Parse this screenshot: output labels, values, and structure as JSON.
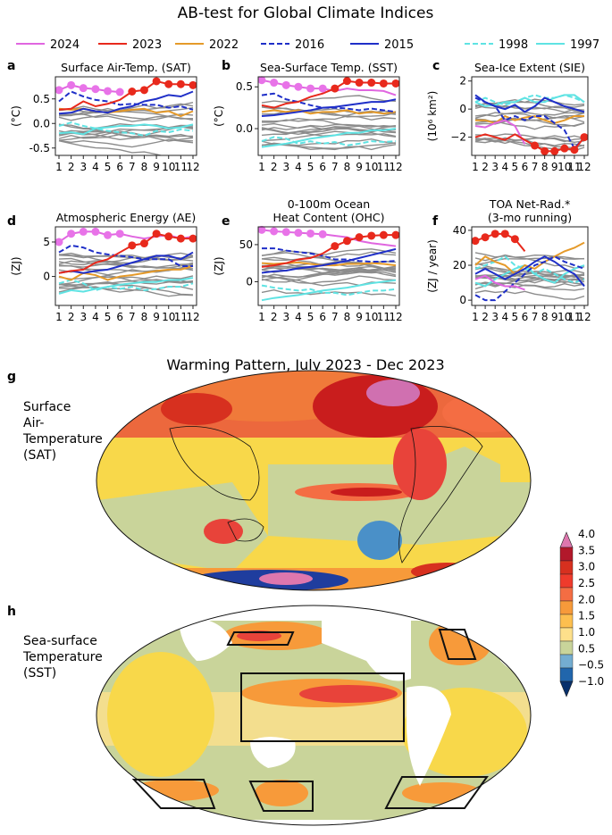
{
  "figure": {
    "title": "AB-test for Global Climate Indices",
    "map_title": "Warming Pattern, July 2023 - Dec 2023",
    "map_panels": [
      {
        "label": "g",
        "name": "Surface Air-Temperature (SAT)",
        "name_lines": [
          "Surface",
          "Air-",
          "Temperature",
          "(SAT)"
        ]
      },
      {
        "label": "h",
        "name": "Sea-surface Temperature (SST)",
        "name_lines": [
          "Sea-surface",
          "Temperature",
          "(SST)"
        ]
      }
    ],
    "colorbar": {
      "ticks": [
        "4.0",
        "3.5",
        "3.0",
        "2.5",
        "2.0",
        "1.5",
        "1.0",
        "0.5",
        "−0.5",
        "−1.0"
      ],
      "colors": [
        "#de77ae",
        "#b2182b",
        "#d7301f",
        "#ef3b2c",
        "#f46d43",
        "#f79a3a",
        "#fdbf4f",
        "#fee08b",
        "#c9d49a",
        "#74add1",
        "#2166ac",
        "#08306b"
      ]
    },
    "legend": [
      {
        "name": "2024",
        "color": "#e066e0",
        "dash": "solid"
      },
      {
        "name": "2023",
        "color": "#e8291c",
        "dash": "solid"
      },
      {
        "name": "2022",
        "color": "#e59a2a",
        "dash": "solid"
      },
      {
        "name": "2016",
        "color": "#1f2fc8",
        "dash": "dashed"
      },
      {
        "name": "2015",
        "color": "#1f2fc8",
        "dash": "solid"
      },
      {
        "name": "1998",
        "color": "#5fe3e3",
        "dash": "dashed"
      },
      {
        "name": "1997",
        "color": "#5fe3e3",
        "dash": "solid"
      }
    ]
  },
  "chart_data": [
    {
      "panel": "a",
      "type": "line",
      "title": "Surface Air-Temp. (SAT)",
      "ylabel": "(°C)",
      "x": [
        1,
        2,
        3,
        4,
        5,
        6,
        7,
        8,
        9,
        10,
        11,
        12
      ],
      "ylim": [
        -0.65,
        0.95
      ],
      "yticks": [
        "0.5",
        "0.0",
        "-0.5"
      ],
      "ytick_values": [
        0.5,
        0.0,
        -0.5
      ],
      "series": [
        {
          "name": "2024",
          "values": [
            0.68,
            0.78,
            0.72,
            0.7,
            0.66,
            0.64,
            null,
            null,
            null,
            null,
            null,
            null
          ]
        },
        {
          "name": "2023",
          "values": [
            0.28,
            0.3,
            0.45,
            0.35,
            0.4,
            0.48,
            0.65,
            0.68,
            0.86,
            0.8,
            0.8,
            0.78
          ]
        },
        {
          "name": "2022",
          "values": [
            0.3,
            0.28,
            0.3,
            0.25,
            0.22,
            0.25,
            0.28,
            0.3,
            0.22,
            0.25,
            0.15,
            0.25
          ]
        },
        {
          "name": "2016",
          "values": [
            0.45,
            0.65,
            0.55,
            0.48,
            0.45,
            0.38,
            0.4,
            0.38,
            0.38,
            0.32,
            0.35,
            0.28
          ]
        },
        {
          "name": "2015",
          "values": [
            0.2,
            0.22,
            0.3,
            0.25,
            0.22,
            0.3,
            0.35,
            0.45,
            0.5,
            0.58,
            0.55,
            0.65
          ]
        },
        {
          "name": "1998",
          "values": [
            -0.05,
            0.02,
            -0.05,
            -0.1,
            -0.15,
            -0.18,
            -0.2,
            -0.25,
            -0.15,
            -0.18,
            -0.12,
            -0.15
          ]
        },
        {
          "name": "1997",
          "values": [
            -0.2,
            -0.18,
            -0.22,
            -0.1,
            -0.08,
            -0.05,
            -0.05,
            -0.02,
            -0.05,
            -0.1,
            -0.08,
            -0.02
          ]
        }
      ]
    },
    {
      "panel": "b",
      "type": "line",
      "title": "Sea-Surface Temp. (SST)",
      "ylabel": "(°C)",
      "x": [
        1,
        2,
        3,
        4,
        5,
        6,
        7,
        8,
        9,
        10,
        11,
        12
      ],
      "ylim": [
        -0.32,
        0.62
      ],
      "yticks": [
        "0.5",
        "0.0"
      ],
      "ytick_values": [
        0.5,
        0.0
      ],
      "series": [
        {
          "name": "2024",
          "values": [
            0.58,
            0.55,
            0.52,
            0.5,
            0.48,
            0.48,
            0.45,
            0.48,
            0.46,
            0.46,
            0.45,
            0.4
          ]
        },
        {
          "name": "2023",
          "values": [
            0.28,
            0.25,
            0.3,
            0.32,
            0.38,
            0.42,
            0.48,
            0.57,
            0.55,
            0.55,
            0.54,
            0.54
          ]
        },
        {
          "name": "2022",
          "values": [
            0.2,
            0.22,
            0.2,
            0.22,
            0.18,
            0.2,
            0.2,
            0.22,
            0.18,
            0.2,
            0.18,
            0.2
          ]
        },
        {
          "name": "2016",
          "values": [
            0.4,
            0.42,
            0.35,
            0.32,
            0.28,
            0.25,
            0.25,
            0.24,
            0.22,
            0.24,
            0.22,
            0.2
          ]
        },
        {
          "name": "2015",
          "values": [
            0.15,
            0.16,
            0.18,
            0.2,
            0.22,
            0.25,
            0.26,
            0.28,
            0.3,
            0.32,
            0.32,
            0.35
          ]
        },
        {
          "name": "1998",
          "values": [
            -0.15,
            -0.1,
            -0.12,
            -0.18,
            -0.15,
            -0.18,
            -0.16,
            -0.2,
            -0.18,
            -0.15,
            -0.16,
            -0.15
          ]
        },
        {
          "name": "1997",
          "values": [
            -0.22,
            -0.2,
            -0.18,
            -0.15,
            -0.12,
            -0.1,
            -0.08,
            -0.05,
            -0.05,
            -0.02,
            -0.02,
            0.0
          ]
        }
      ]
    },
    {
      "panel": "c",
      "type": "line",
      "title": "Sea-Ice Extent (SIE)",
      "ylabel": "(10⁶ km²)",
      "x": [
        1,
        2,
        3,
        4,
        5,
        6,
        7,
        8,
        9,
        10,
        11,
        12
      ],
      "ylim": [
        -3.3,
        2.3
      ],
      "yticks": [
        "2",
        "0",
        "−2"
      ],
      "ytick_values": [
        2,
        0,
        -2
      ],
      "series": [
        {
          "name": "2024",
          "values": [
            -1.2,
            -1.3,
            -1.0,
            -0.8,
            -1.2,
            -2.5,
            null,
            null,
            null,
            null,
            null,
            null
          ]
        },
        {
          "name": "2023",
          "values": [
            -2.0,
            -1.8,
            -2.0,
            -2.2,
            -1.8,
            -2.2,
            -2.6,
            -3.0,
            -3.0,
            -2.8,
            -2.9,
            -2.0
          ]
        },
        {
          "name": "2022",
          "values": [
            -0.8,
            -0.8,
            -1.0,
            -0.5,
            -0.8,
            -0.6,
            -0.5,
            -0.8,
            -1.0,
            -0.8,
            -0.5,
            -0.5
          ]
        },
        {
          "name": "2016",
          "values": [
            0.8,
            0.5,
            0.2,
            -0.8,
            -0.5,
            -0.8,
            -0.5,
            -0.5,
            -1.0,
            -1.5,
            -2.8,
            -2.0
          ]
        },
        {
          "name": "2015",
          "values": [
            1.0,
            0.5,
            0.2,
            0.0,
            0.3,
            -0.2,
            0.2,
            0.8,
            0.5,
            0.2,
            0.0,
            -0.2
          ]
        },
        {
          "name": "1998",
          "values": [
            0.5,
            0.8,
            0.5,
            0.3,
            0.5,
            0.8,
            1.0,
            0.8,
            0.8,
            1.0,
            0.8,
            0.5
          ]
        },
        {
          "name": "1997",
          "values": [
            0.5,
            0.2,
            0.3,
            0.5,
            0.5,
            0.8,
            0.5,
            0.5,
            0.8,
            1.0,
            1.0,
            0.5
          ]
        }
      ]
    },
    {
      "panel": "d",
      "type": "line",
      "title": "Atmospheric Energy (AE)",
      "ylabel": "(ZJ)",
      "x": [
        1,
        2,
        3,
        4,
        5,
        6,
        7,
        8,
        9,
        10,
        11,
        12
      ],
      "ylim": [
        -4.2,
        7.2
      ],
      "yticks": [
        "5",
        "0"
      ],
      "ytick_values": [
        5,
        0
      ],
      "series": [
        {
          "name": "2024",
          "values": [
            5.0,
            6.2,
            6.5,
            6.5,
            6.0,
            6.2,
            5.8,
            5.5,
            5.8,
            6.0,
            5.5,
            5.8
          ]
        },
        {
          "name": "2023",
          "values": [
            0.5,
            0.8,
            1.0,
            2.0,
            2.5,
            3.5,
            4.5,
            4.8,
            6.2,
            5.8,
            5.5,
            5.5
          ]
        },
        {
          "name": "2022",
          "values": [
            0.0,
            -0.5,
            0.5,
            0.2,
            -0.5,
            0.0,
            0.2,
            0.5,
            0.8,
            1.0,
            1.0,
            1.5
          ]
        },
        {
          "name": "2016",
          "values": [
            3.5,
            4.5,
            4.2,
            3.5,
            3.2,
            3.0,
            2.8,
            2.5,
            2.5,
            2.5,
            1.5,
            1.5
          ]
        },
        {
          "name": "2015",
          "values": [
            0.5,
            0.8,
            0.5,
            0.8,
            1.0,
            1.5,
            2.0,
            2.5,
            3.0,
            3.0,
            2.5,
            3.5
          ]
        },
        {
          "name": "1998",
          "values": [
            -1.0,
            -0.5,
            -1.0,
            -2.0,
            -1.5,
            -1.8,
            -1.5,
            -2.0,
            -1.8,
            -1.5,
            -1.5,
            -1.0
          ]
        },
        {
          "name": "1997",
          "values": [
            -2.5,
            -2.0,
            -2.2,
            -1.8,
            -1.5,
            -1.2,
            -1.0,
            -0.8,
            -0.8,
            -0.5,
            -0.5,
            -0.2
          ]
        }
      ]
    },
    {
      "panel": "e",
      "type": "line",
      "title": "0-100m Ocean\nHeat Content (OHC)",
      "ylabel": "(ZJ)",
      "x": [
        1,
        2,
        3,
        4,
        5,
        6,
        7,
        8,
        9,
        10,
        11,
        12
      ],
      "ylim": [
        -32,
        74
      ],
      "yticks": [
        "50",
        "0"
      ],
      "ytick_values": [
        50,
        0
      ],
      "series": [
        {
          "name": "2024",
          "values": [
            70,
            68,
            67,
            66,
            65,
            64,
            62,
            60,
            55,
            52,
            50,
            48
          ]
        },
        {
          "name": "2023",
          "values": [
            20,
            22,
            25,
            30,
            32,
            38,
            48,
            55,
            60,
            62,
            63,
            63
          ]
        },
        {
          "name": "2022",
          "values": [
            25,
            24,
            25,
            26,
            24,
            22,
            22,
            24,
            24,
            25,
            24,
            22
          ]
        },
        {
          "name": "2016",
          "values": [
            45,
            45,
            42,
            40,
            38,
            35,
            30,
            30,
            28,
            27,
            27,
            28
          ]
        },
        {
          "name": "2015",
          "values": [
            12,
            14,
            15,
            18,
            20,
            22,
            25,
            28,
            32,
            36,
            40,
            44
          ]
        },
        {
          "name": "1998",
          "values": [
            -5,
            -8,
            -10,
            -12,
            -10,
            -15,
            -15,
            -18,
            -15,
            -12,
            -12,
            -10
          ]
        },
        {
          "name": "1997",
          "values": [
            -25,
            -22,
            -20,
            -18,
            -15,
            -12,
            -10,
            -8,
            -5,
            -2,
            0,
            2
          ]
        }
      ]
    },
    {
      "panel": "f",
      "type": "line",
      "title": "TOA Net-Rad.*\n(3-mo running)",
      "ylabel": "(ZJ / year)",
      "x": [
        1,
        2,
        3,
        4,
        5,
        6,
        7,
        8,
        9,
        10,
        11,
        12
      ],
      "ylim": [
        -3,
        42
      ],
      "yticks": [
        "40",
        "20",
        "0"
      ],
      "ytick_values": [
        40,
        20,
        0
      ],
      "series": [
        {
          "name": "2024",
          "values": [
            12,
            14,
            10,
            8,
            8,
            6,
            null,
            null,
            null,
            null,
            null,
            null
          ]
        },
        {
          "name": "2023",
          "values": [
            34,
            36,
            38,
            38,
            35,
            28,
            null,
            null,
            null,
            null,
            null,
            null
          ]
        },
        {
          "name": "2022",
          "values": [
            20,
            25,
            22,
            20,
            15,
            20,
            18,
            22,
            25,
            28,
            30,
            33
          ]
        },
        {
          "name": "2016",
          "values": [
            3,
            0,
            0,
            5,
            10,
            15,
            20,
            22,
            25,
            22,
            20,
            18
          ]
        },
        {
          "name": "2015",
          "values": [
            15,
            18,
            15,
            12,
            15,
            18,
            22,
            25,
            22,
            18,
            15,
            8
          ]
        },
        {
          "name": "1998",
          "values": [
            18,
            20,
            22,
            25,
            20,
            18,
            15,
            18,
            15,
            12,
            10,
            12
          ]
        },
        {
          "name": "1997",
          "values": [
            10,
            8,
            12,
            15,
            18,
            20,
            15,
            12,
            10,
            15,
            18,
            20
          ]
        }
      ]
    }
  ]
}
